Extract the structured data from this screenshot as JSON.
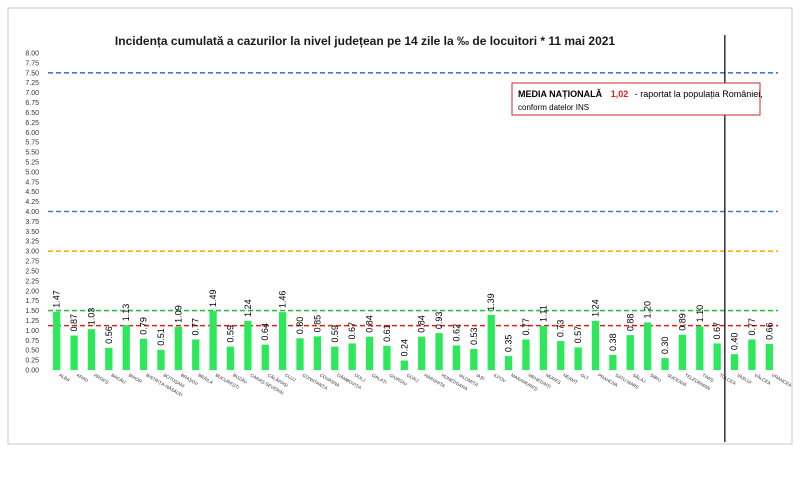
{
  "chart_data": {
    "type": "bar",
    "title": "Incidența cumulată a cazurilor la nivel județean pe 14 zile la ‰ de locuitori *  11 mai 2021",
    "xlabel": "",
    "ylabel": "",
    "ylim": [
      0,
      8
    ],
    "y_tick_labels": [
      "0.00",
      "0.25",
      "0.50",
      "0.75",
      "1.00",
      "1.25",
      "1.50",
      "1.75",
      "2.00",
      "2.25",
      "2.50",
      "2.75",
      "3.00",
      "3.25",
      "3.50",
      "3.75",
      "4.00",
      "4.25",
      "4.50",
      "4.75",
      "5.00",
      "5.25",
      "5.50",
      "5.75",
      "6.00",
      "6.25",
      "6.50",
      "6.75",
      "7.00",
      "7.25",
      "7.50",
      "7.75",
      "8.00"
    ],
    "grid": false,
    "categories": [
      "ALBA",
      "ARAD",
      "ARGEȘ",
      "BACĂU",
      "BIHOR",
      "BISTRIȚA-NĂSĂUD",
      "BOTOȘANI",
      "BRAȘOV",
      "BRĂILA",
      "BUCUREȘTI",
      "BUZĂU",
      "CARAȘ-SEVERIN",
      "CĂLĂRAȘI",
      "CLUJ",
      "CONSTANȚA",
      "COVASNA",
      "DÂMBOVIȚA",
      "DOLJ",
      "GALAȚI",
      "GIURGIU",
      "GORJ",
      "HARGHITA",
      "HUNEDOARA",
      "IALOMIȚA",
      "IAȘI",
      "ILFOV",
      "MARAMUREȘ",
      "MEHEDINȚI",
      "MUREȘ",
      "NEAMȚ",
      "OLT",
      "PRAHOVA",
      "SATU MARE",
      "SĂLAJ",
      "SIBIU",
      "SUCEAVA",
      "TELEORMAN",
      "TIMIȘ",
      "TULCEA",
      "VASLUI",
      "VÂLCEA",
      "VRANCEA"
    ],
    "values": [
      1.47,
      0.87,
      1.03,
      0.56,
      1.13,
      0.79,
      0.51,
      1.09,
      0.77,
      1.49,
      0.59,
      1.24,
      0.64,
      1.46,
      0.8,
      0.85,
      0.59,
      0.67,
      0.84,
      0.61,
      0.24,
      0.84,
      0.93,
      0.62,
      0.53,
      1.39,
      0.35,
      0.77,
      1.11,
      0.73,
      0.57,
      1.24,
      0.38,
      0.88,
      1.2,
      0.3,
      0.89,
      1.1,
      0.67,
      0.4,
      0.77,
      0.66
    ],
    "data_labels": [
      "1.47",
      "0.87",
      "1.03",
      "0.56",
      "1.13",
      "0.79",
      "0.51",
      "1.09",
      "0.77",
      "1.49",
      "0.59",
      "1.24",
      "0.64",
      "1.46",
      "0.80",
      "0.85",
      "0.59",
      "0.67",
      "0.84",
      "0.61",
      "0.24",
      "0.84",
      "0.93",
      "0.62",
      "0.53",
      "1.39",
      "0.35",
      "0.77",
      "1.11",
      "0.73",
      "0.57",
      "1.24",
      "0.38",
      "0.88",
      "1.20",
      "0.30",
      "0.89",
      "1.10",
      "0.67",
      "0.40",
      "0.77",
      "0.66"
    ],
    "reference_lines": [
      {
        "value": 7.5,
        "style": "dashed",
        "color": "#3a7bd5"
      },
      {
        "value": 4.0,
        "style": "dashed",
        "color": "#3a7bd5"
      },
      {
        "value": 3.0,
        "style": "dashed",
        "color": "#f5a400"
      },
      {
        "value": 1.5,
        "style": "dashed",
        "color": "#2fbf3e"
      },
      {
        "value": 1.12,
        "style": "dashed",
        "color": "#e31c1c"
      }
    ],
    "divider_after_category": "TULCEA",
    "annotation": {
      "part1": "MEDIA NAȚIONALĂ",
      "part2": "1,02",
      "part3": "- raportat la populația României,",
      "part4": "conform datelor INS"
    },
    "bar_color": "#2ee85c",
    "label_color": "#000000"
  }
}
